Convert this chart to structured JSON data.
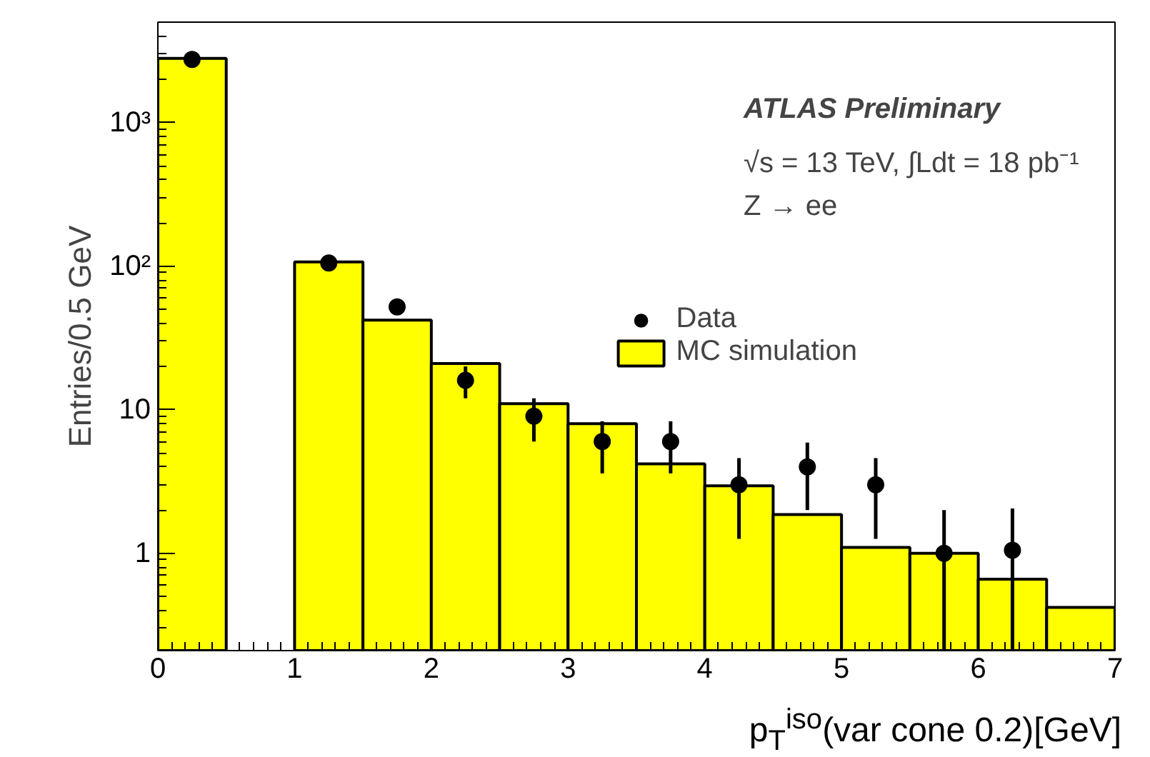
{
  "chart_data": {
    "type": "histogram",
    "xlabel": "p$_{T}$$^{iso}$(var cone 0.2)[GeV]",
    "ylabel": "Entries/0.5 GeV",
    "annotations": [
      "ATLAS Preliminary",
      "√s = 13 TeV, ∫Ldt = 18 pb⁻¹",
      "Z → ee"
    ],
    "bins": [
      0,
      0.5,
      1,
      1.5,
      2,
      2.5,
      3,
      3.5,
      4,
      4.5,
      5,
      5.5,
      6,
      6.5,
      7
    ],
    "series": [
      {
        "name": "Data",
        "type": "scatter",
        "color": "#000000",
        "x": [
          0.25,
          1.25,
          1.75,
          2.25,
          2.75,
          3.25,
          3.75,
          4.25,
          4.75,
          5.25,
          5.75,
          6.25
        ],
        "values": [
          2750,
          105,
          52,
          16,
          9,
          6,
          6,
          3,
          4,
          3,
          1,
          1.05
        ],
        "errors": [
          null,
          null,
          null,
          [
            12,
            20
          ],
          [
            6,
            12
          ],
          [
            3.6,
            8.3
          ],
          [
            3.6,
            8.3
          ],
          [
            1.26,
            4.6
          ],
          [
            2,
            5.9
          ],
          [
            1.26,
            4.6
          ],
          [
            0.21,
            2
          ],
          [
            0.21,
            2.05
          ]
        ]
      },
      {
        "name": "MC simulation",
        "color": "#ffff00",
        "values": [
          2800,
          null,
          107,
          42,
          21,
          11,
          8,
          4.2,
          2.95,
          1.86,
          1.1,
          1,
          0.66,
          0.42
        ]
      }
    ],
    "xlim": [
      0,
      7
    ],
    "xticks": [
      0,
      1,
      2,
      3,
      4,
      5,
      6,
      7
    ],
    "ylim": [
      0.21,
      5000
    ],
    "yticks": [
      1,
      10,
      {
        "value": 100,
        "label": "10²"
      },
      {
        "value": 1000,
        "label": "10³"
      }
    ],
    "log": "y",
    "grid": false,
    "legend": "right",
    "marker": "circle"
  }
}
